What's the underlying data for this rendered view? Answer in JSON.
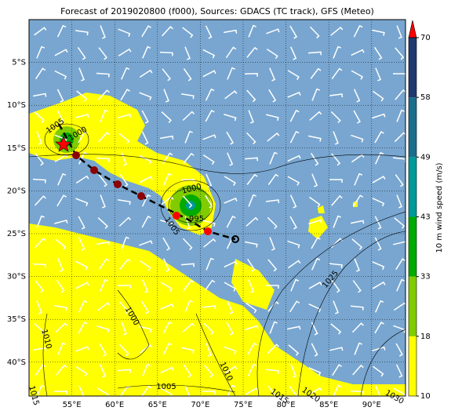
{
  "title": "Forecast of 2019020800 (f000), Sources: GDACS (TC track), GFS (Meteo)",
  "lat_labels": [
    "5°S",
    "10°S",
    "15°S",
    "20°S",
    "25°S",
    "30°S",
    "35°S",
    "40°S"
  ],
  "lon_labels": [
    "55°E",
    "60°E",
    "65°E",
    "70°E",
    "75°E",
    "80°E",
    "85°E",
    "90°E"
  ],
  "colorbar": {
    "label": "10 m wind speed (m/s)",
    "ticks": [
      10,
      18,
      33,
      43,
      49,
      58,
      70
    ]
  },
  "contour_labels": [
    "1005",
    "1000",
    "1000",
    "1005",
    "995",
    "1025",
    "1000",
    "1010",
    "1010",
    "1015",
    "1005",
    "1015",
    "1020",
    "1030"
  ]
}
